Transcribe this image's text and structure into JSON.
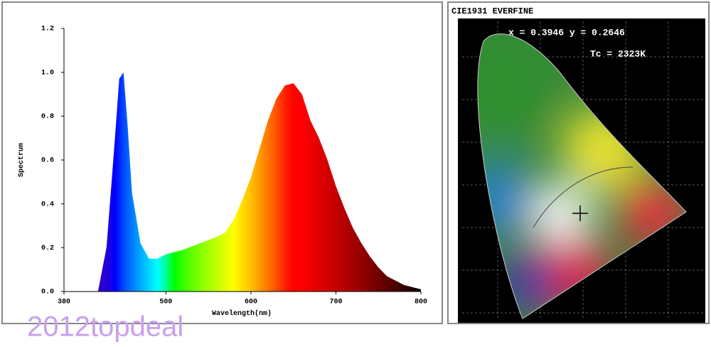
{
  "chart_data": [
    {
      "type": "area",
      "xlabel": "Wavelength(nm)",
      "ylabel": "Spectrum",
      "x": [
        420,
        430,
        440,
        445,
        450,
        455,
        460,
        470,
        480,
        490,
        500,
        520,
        540,
        560,
        570,
        580,
        590,
        600,
        610,
        620,
        630,
        640,
        650,
        660,
        670,
        680,
        690,
        700,
        710,
        720,
        730,
        740,
        750,
        760,
        780,
        800
      ],
      "values": [
        0,
        0.2,
        0.7,
        0.97,
        1.0,
        0.75,
        0.45,
        0.22,
        0.15,
        0.15,
        0.17,
        0.19,
        0.22,
        0.25,
        0.27,
        0.33,
        0.42,
        0.52,
        0.65,
        0.78,
        0.88,
        0.94,
        0.95,
        0.9,
        0.78,
        0.7,
        0.6,
        0.48,
        0.38,
        0.29,
        0.22,
        0.16,
        0.11,
        0.07,
        0.03,
        0.01
      ],
      "xlim": [
        380,
        800
      ],
      "ylim": [
        0,
        1.2
      ],
      "xticks": [
        380,
        500,
        600,
        700,
        800
      ],
      "yticks": [
        {
          "value": 0,
          "label": "0.0"
        },
        {
          "value": 0.2,
          "label": "0.2"
        },
        {
          "value": 0.4,
          "label": "0.4"
        },
        {
          "value": 0.6,
          "label": "0.6"
        },
        {
          "value": 0.8,
          "label": "0.8"
        },
        {
          "value": 1,
          "label": "1.0"
        },
        {
          "value": 1.2,
          "label": "1.2"
        }
      ]
    },
    {
      "type": "cie",
      "title": "CIE1931 EVERFINE",
      "annotations": [
        "x = 0.3946 y = 0.2646",
        "Tc = 2323K"
      ]
    }
  ],
  "watermark": "2012topdeal"
}
